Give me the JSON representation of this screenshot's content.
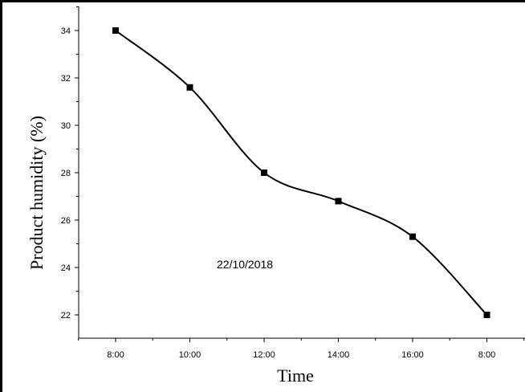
{
  "chart_data": {
    "type": "line",
    "title": "",
    "xlabel": "Time",
    "ylabel": "Product humidity (%)",
    "categories": [
      "8:00",
      "10:00",
      "12:00",
      "14:00",
      "16:00",
      "8:00"
    ],
    "values": [
      34.0,
      31.6,
      28.0,
      26.8,
      25.3,
      22.0
    ],
    "ylim": [
      21,
      35.5
    ],
    "yticks": [
      22,
      24,
      26,
      28,
      30,
      32,
      34
    ],
    "annotation": "22/10/2018",
    "grid": false,
    "legend": "none",
    "line_color": "#000000",
    "marker": "square"
  }
}
